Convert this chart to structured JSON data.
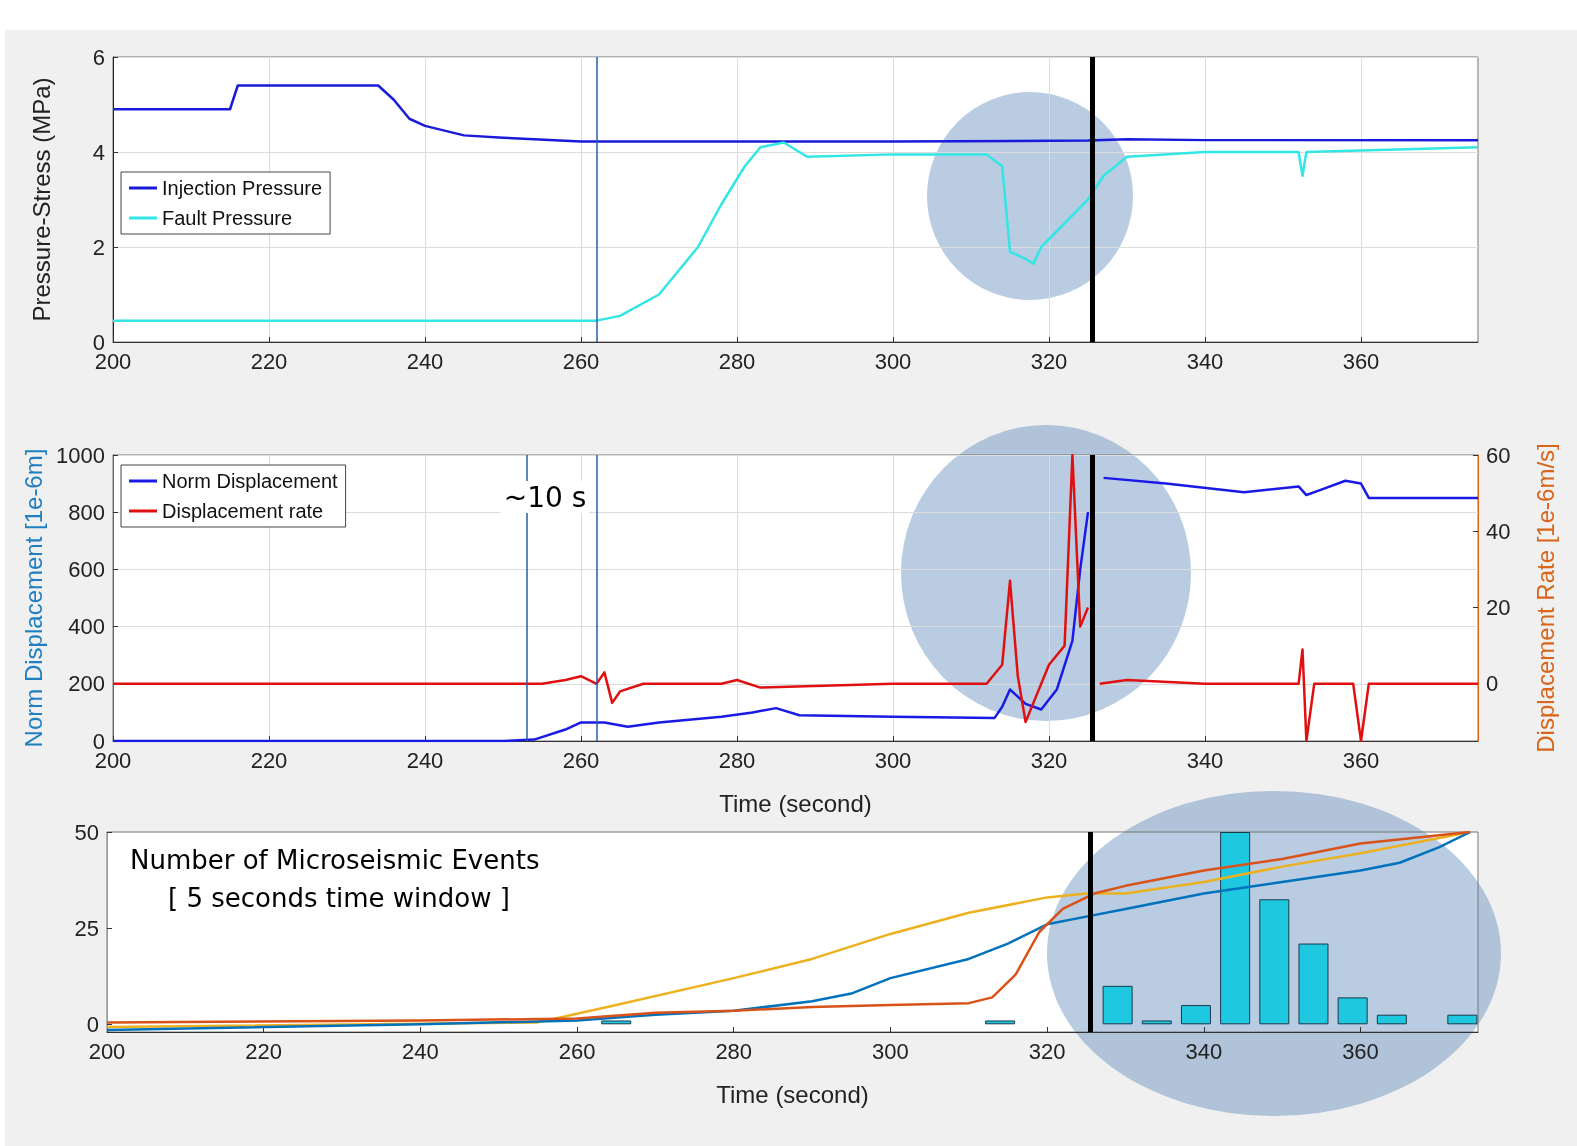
{
  "chart_data": [
    {
      "type": "line",
      "ylabel": "Pressure-Stress (MPa)",
      "xlim": [
        200,
        375
      ],
      "xticks": [
        200,
        220,
        240,
        260,
        280,
        300,
        320,
        340,
        360
      ],
      "ylim": [
        0,
        6
      ],
      "yticks": [
        0,
        2,
        4,
        6
      ],
      "grid": true,
      "legend": "left",
      "marker": "none",
      "ref_lines": [
        {
          "axis": "x",
          "value": 262,
          "color": "#2a5caa"
        },
        {
          "axis": "x",
          "value": 325.5,
          "color": "#000000"
        }
      ],
      "series": [
        {
          "name": "Injection Pressure",
          "color": "#1a1adb",
          "x": [
            200,
            215,
            216,
            234,
            236,
            238,
            240,
            245,
            250,
            260,
            300,
            325,
            330,
            340,
            375
          ],
          "values": [
            4.9,
            4.9,
            5.4,
            5.4,
            5.1,
            4.7,
            4.55,
            4.35,
            4.3,
            4.22,
            4.22,
            4.24,
            4.27,
            4.25,
            4.25
          ]
        },
        {
          "name": "Fault Pressure",
          "color": "#33e6e6",
          "x": [
            200,
            262,
            265,
            270,
            275,
            278,
            281,
            283,
            286,
            289,
            300,
            312,
            314,
            315,
            317,
            318,
            319,
            322,
            325,
            327,
            330,
            340,
            352,
            352.5,
            353,
            375
          ],
          "values": [
            0.45,
            0.45,
            0.55,
            1.0,
            2.0,
            2.9,
            3.7,
            4.1,
            4.2,
            3.9,
            3.95,
            3.95,
            3.7,
            1.9,
            1.75,
            1.65,
            2.0,
            2.5,
            3.0,
            3.5,
            3.9,
            4.0,
            4.0,
            3.5,
            4.0,
            4.1
          ]
        }
      ]
    },
    {
      "type": "line",
      "xlabel": "Time (second)",
      "ylabel": "Norm Displacement [1e-6m]",
      "y2label": "Displacement Rate [1e-6m/s]",
      "xlim": [
        200,
        375
      ],
      "xticks": [
        200,
        220,
        240,
        260,
        280,
        300,
        320,
        340,
        360
      ],
      "ylim": [
        0,
        1000
      ],
      "yticks": [
        0,
        200,
        400,
        600,
        800,
        1000
      ],
      "y2lim": [
        -15,
        60
      ],
      "y2ticks": [
        0,
        20,
        40,
        60
      ],
      "grid": true,
      "legend": "top left",
      "marker": "none",
      "annotations": [
        "~10 s"
      ],
      "ref_lines": [
        {
          "axis": "x",
          "value": 253,
          "color": "#2a5caa"
        },
        {
          "axis": "x",
          "value": 262,
          "color": "#2a5caa"
        },
        {
          "axis": "x",
          "value": 325.5,
          "color": "#000000"
        }
      ],
      "series": [
        {
          "name": "Norm Displacement",
          "color": "#1a1ae6",
          "x": [
            200,
            250,
            254,
            258,
            260,
            263,
            266,
            270,
            278,
            282,
            285,
            288,
            300,
            313,
            314,
            315,
            317,
            319,
            321,
            323,
            324,
            325,
            325.8,
            327,
            335,
            345,
            352,
            353,
            355,
            358,
            360,
            361,
            375
          ],
          "values": [
            0,
            0,
            5,
            40,
            65,
            65,
            50,
            65,
            85,
            100,
            115,
            90,
            85,
            80,
            120,
            180,
            130,
            110,
            180,
            350,
            600,
            800,
            null,
            920,
            900,
            870,
            890,
            860,
            880,
            910,
            900,
            850,
            850
          ]
        },
        {
          "name": "Displacement rate",
          "color": "#e01010",
          "axis": "y2",
          "x": [
            200,
            255,
            258,
            260,
            262,
            263,
            264,
            265,
            268,
            278,
            280,
            283,
            300,
            312,
            314,
            315,
            316,
            317,
            318,
            320,
            322,
            323,
            324,
            325,
            325.8,
            326.5,
            330,
            340,
            352,
            352.5,
            353,
            354,
            359,
            360,
            361,
            375
          ],
          "values": [
            0,
            0,
            1,
            2,
            0,
            3,
            -5,
            -2,
            0,
            0,
            1,
            -1,
            0,
            0,
            5,
            27,
            2,
            -10,
            -5,
            5,
            10,
            60,
            15,
            20,
            null,
            0,
            1,
            0,
            0,
            9,
            -15,
            0,
            0,
            -15,
            0,
            0
          ]
        }
      ]
    },
    {
      "type": "bar",
      "title": "Number of Microseismic Events",
      "subtitle": "[ 5 seconds time window ]",
      "xlabel": "Time (second)",
      "xlim": [
        200,
        375
      ],
      "xticks": [
        200,
        220,
        240,
        260,
        280,
        300,
        320,
        340,
        360
      ],
      "ylim": [
        -2,
        50
      ],
      "yticks": [
        0,
        25,
        50
      ],
      "grid": false,
      "marker": "none",
      "ref_lines": [
        {
          "axis": "x",
          "value": 325.5,
          "color": "#000000"
        }
      ],
      "series": [
        {
          "color": "#1ec8e0",
          "x": [
            265,
            314,
            329,
            334,
            339,
            344,
            349,
            354,
            359,
            364,
            373
          ],
          "values": [
            1,
            1,
            10,
            1,
            5,
            50,
            32.5,
            21,
            7,
            2.5,
            2.5
          ]
        },
        {
          "type": "line",
          "color": "#edb120",
          "x": [
            200,
            255,
            265,
            280,
            290,
            300,
            310,
            320,
            325,
            330,
            340,
            350,
            360,
            374
          ],
          "values": [
            -0.7,
            0.5,
            5,
            12,
            17,
            23.5,
            29,
            33,
            34,
            34,
            37,
            41,
            44.5,
            50
          ]
        },
        {
          "type": "line",
          "color": "#0072bd",
          "x": [
            200,
            240,
            260,
            270,
            280,
            290,
            295,
            300,
            310,
            315,
            320,
            325,
            330,
            340,
            350,
            360,
            365,
            370,
            374
          ],
          "values": [
            -1.5,
            0,
            1,
            2.5,
            3.5,
            6,
            8,
            12,
            17,
            21,
            26,
            28,
            30,
            34,
            37,
            40,
            42,
            46,
            50
          ]
        },
        {
          "type": "line",
          "color": "#d95319",
          "x": [
            200,
            240,
            260,
            270,
            280,
            290,
            300,
            310,
            313,
            316,
            319,
            322,
            326,
            330,
            340,
            350,
            360,
            374
          ],
          "values": [
            0.5,
            1,
            1.5,
            3,
            3.5,
            4.5,
            5,
            5.5,
            7,
            13,
            24,
            30,
            34,
            36,
            40,
            43,
            47,
            50
          ]
        }
      ]
    }
  ]
}
